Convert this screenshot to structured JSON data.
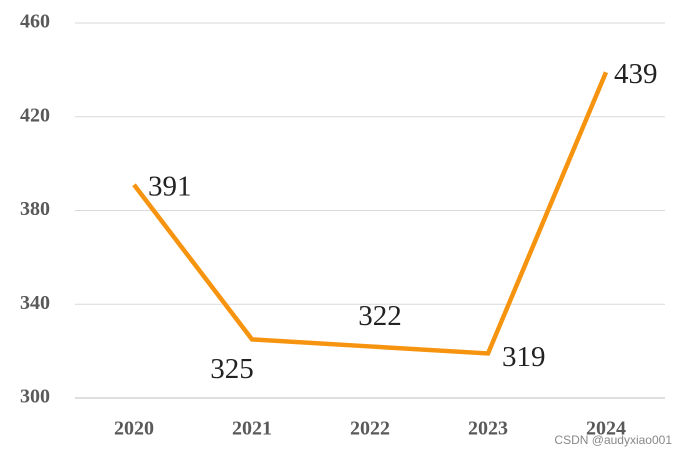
{
  "chart_data": {
    "type": "line",
    "categories": [
      "2020",
      "2021",
      "2022",
      "2023",
      "2024"
    ],
    "values": [
      391,
      325,
      322,
      319,
      439
    ],
    "color": "#f7940f",
    "ylim": [
      300,
      460
    ],
    "yticks": [
      300,
      340,
      380,
      420,
      460
    ],
    "grid": true,
    "watermark": "CSDN @audyxiao001"
  }
}
